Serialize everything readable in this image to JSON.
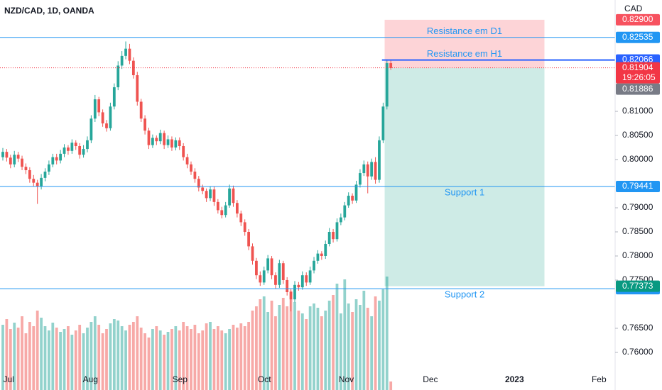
{
  "chart_data": {
    "type": "candlestick",
    "title": "NZD/CAD, 1D, OANDA",
    "currency": "CAD",
    "ylim": [
      0.7522,
      0.8331
    ],
    "xlim": [
      -0.74,
      159.4
    ],
    "yticks": [
      {
        "value": 0.81,
        "label": "0.81000"
      },
      {
        "value": 0.805,
        "label": "0.80500"
      },
      {
        "value": 0.8,
        "label": "0.80000"
      },
      {
        "value": 0.79,
        "label": "0.79000"
      },
      {
        "value": 0.785,
        "label": "0.78500"
      },
      {
        "value": 0.78,
        "label": "0.78000"
      },
      {
        "value": 0.775,
        "label": "0.77500"
      },
      {
        "value": 0.765,
        "label": "0.76500"
      },
      {
        "value": 0.76,
        "label": "0.76000"
      }
    ],
    "xticks": [
      {
        "value": 1.5,
        "label": "Jul"
      },
      {
        "value": 22.8,
        "label": "Aug"
      },
      {
        "value": 46.1,
        "label": "Sep"
      },
      {
        "value": 68.1,
        "label": "Oct"
      },
      {
        "value": 89.4,
        "label": "Nov"
      },
      {
        "value": 111.3,
        "label": "Dec"
      },
      {
        "value": 133.2,
        "label": "2023"
      },
      {
        "value": 155.2,
        "label": "Feb"
      }
    ],
    "up_color": "#26a69a",
    "down_color": "#ef5350",
    "candles": [
      [
        0.8005,
        0.8024,
        0.7998,
        0.8016
      ],
      [
        0.8016,
        0.8022,
        0.7996,
        0.8004
      ],
      [
        0.8004,
        0.801,
        0.7982,
        0.799
      ],
      [
        0.799,
        0.8018,
        0.7984,
        0.801
      ],
      [
        0.801,
        0.8016,
        0.7995,
        0.8002
      ],
      [
        0.8002,
        0.8008,
        0.7978,
        0.7985
      ],
      [
        0.7985,
        0.7992,
        0.797,
        0.7978
      ],
      [
        0.7978,
        0.7984,
        0.7952,
        0.796
      ],
      [
        0.796,
        0.7968,
        0.7945,
        0.7952
      ],
      [
        0.7952,
        0.7958,
        0.7908,
        0.7945
      ],
      [
        0.7945,
        0.797,
        0.7938,
        0.7962
      ],
      [
        0.7962,
        0.7982,
        0.7955,
        0.7975
      ],
      [
        0.7975,
        0.7998,
        0.7968,
        0.799
      ],
      [
        0.799,
        0.8012,
        0.7984,
        0.8005
      ],
      [
        0.8005,
        0.8012,
        0.799,
        0.7998
      ],
      [
        0.7998,
        0.802,
        0.7992,
        0.8012
      ],
      [
        0.8012,
        0.8032,
        0.8005,
        0.8025
      ],
      [
        0.8025,
        0.803,
        0.801,
        0.8018
      ],
      [
        0.8018,
        0.8042,
        0.8012,
        0.8035
      ],
      [
        0.8035,
        0.804,
        0.802,
        0.8028
      ],
      [
        0.8028,
        0.8034,
        0.8002,
        0.801
      ],
      [
        0.801,
        0.803,
        0.8004,
        0.8022
      ],
      [
        0.8022,
        0.8048,
        0.8015,
        0.804
      ],
      [
        0.804,
        0.8092,
        0.8034,
        0.8085
      ],
      [
        0.8085,
        0.8134,
        0.8078,
        0.8125
      ],
      [
        0.8125,
        0.813,
        0.809,
        0.8098
      ],
      [
        0.8098,
        0.8104,
        0.8068,
        0.8075
      ],
      [
        0.8075,
        0.8082,
        0.8058,
        0.8065
      ],
      [
        0.8065,
        0.8118,
        0.806,
        0.811
      ],
      [
        0.811,
        0.8158,
        0.8104,
        0.815
      ],
      [
        0.815,
        0.8204,
        0.8144,
        0.8195
      ],
      [
        0.8195,
        0.8225,
        0.8188,
        0.8215
      ],
      [
        0.8215,
        0.8245,
        0.8208,
        0.823
      ],
      [
        0.823,
        0.824,
        0.8198,
        0.8205
      ],
      [
        0.8205,
        0.8212,
        0.8168,
        0.8175
      ],
      [
        0.8175,
        0.8182,
        0.8112,
        0.812
      ],
      [
        0.812,
        0.8126,
        0.8078,
        0.8085
      ],
      [
        0.8085,
        0.8092,
        0.8052,
        0.806
      ],
      [
        0.806,
        0.8066,
        0.8022,
        0.803
      ],
      [
        0.803,
        0.8052,
        0.8024,
        0.8045
      ],
      [
        0.8045,
        0.805,
        0.803,
        0.8038
      ],
      [
        0.8038,
        0.8062,
        0.8032,
        0.8055
      ],
      [
        0.8055,
        0.806,
        0.8022,
        0.803
      ],
      [
        0.803,
        0.805,
        0.8024,
        0.8042
      ],
      [
        0.8042,
        0.8048,
        0.8018,
        0.8025
      ],
      [
        0.8025,
        0.8046,
        0.8019,
        0.804
      ],
      [
        0.804,
        0.8046,
        0.802,
        0.8028
      ],
      [
        0.8028,
        0.8034,
        0.7998,
        0.8005
      ],
      [
        0.8005,
        0.8012,
        0.7982,
        0.799
      ],
      [
        0.799,
        0.7996,
        0.7968,
        0.7975
      ],
      [
        0.7975,
        0.7982,
        0.7952,
        0.796
      ],
      [
        0.796,
        0.7966,
        0.7934,
        0.7942
      ],
      [
        0.7942,
        0.7948,
        0.7928,
        0.7935
      ],
      [
        0.7935,
        0.794,
        0.7912,
        0.792
      ],
      [
        0.792,
        0.7945,
        0.7914,
        0.7938
      ],
      [
        0.7938,
        0.7944,
        0.7904,
        0.7912
      ],
      [
        0.7912,
        0.7918,
        0.7888,
        0.7895
      ],
      [
        0.7895,
        0.7902,
        0.7878,
        0.7885
      ],
      [
        0.7885,
        0.7912,
        0.788,
        0.7905
      ],
      [
        0.7905,
        0.7948,
        0.79,
        0.794
      ],
      [
        0.794,
        0.7946,
        0.7902,
        0.791
      ],
      [
        0.791,
        0.7916,
        0.788,
        0.7888
      ],
      [
        0.7888,
        0.7894,
        0.7862,
        0.787
      ],
      [
        0.787,
        0.7876,
        0.7842,
        0.785
      ],
      [
        0.785,
        0.7856,
        0.7812,
        0.782
      ],
      [
        0.782,
        0.7826,
        0.7782,
        0.779
      ],
      [
        0.779,
        0.7796,
        0.7752,
        0.776
      ],
      [
        0.776,
        0.7768,
        0.7738,
        0.7745
      ],
      [
        0.7745,
        0.7778,
        0.774,
        0.777
      ],
      [
        0.777,
        0.7802,
        0.7764,
        0.7795
      ],
      [
        0.7795,
        0.78,
        0.7752,
        0.776
      ],
      [
        0.776,
        0.7766,
        0.7732,
        0.774
      ],
      [
        0.774,
        0.7792,
        0.7734,
        0.7785
      ],
      [
        0.7785,
        0.779,
        0.7742,
        0.775
      ],
      [
        0.775,
        0.7756,
        0.7718,
        0.7725
      ],
      [
        0.7725,
        0.7732,
        0.7685,
        0.771
      ],
      [
        0.771,
        0.7748,
        0.7704,
        0.774
      ],
      [
        0.774,
        0.7746,
        0.7728,
        0.7735
      ],
      [
        0.7735,
        0.7768,
        0.773,
        0.776
      ],
      [
        0.776,
        0.7766,
        0.7738,
        0.7745
      ],
      [
        0.7745,
        0.7778,
        0.774,
        0.777
      ],
      [
        0.777,
        0.7798,
        0.7764,
        0.779
      ],
      [
        0.779,
        0.7812,
        0.7784,
        0.7805
      ],
      [
        0.7805,
        0.781,
        0.7792,
        0.78
      ],
      [
        0.78,
        0.7832,
        0.7794,
        0.7825
      ],
      [
        0.7825,
        0.7858,
        0.782,
        0.785
      ],
      [
        0.785,
        0.7856,
        0.7828,
        0.7835
      ],
      [
        0.7835,
        0.7878,
        0.783,
        0.787
      ],
      [
        0.787,
        0.7888,
        0.7864,
        0.788
      ],
      [
        0.788,
        0.7912,
        0.7874,
        0.7905
      ],
      [
        0.7905,
        0.7932,
        0.79,
        0.7925
      ],
      [
        0.7925,
        0.793,
        0.7908,
        0.7915
      ],
      [
        0.7915,
        0.7956,
        0.791,
        0.7948
      ],
      [
        0.7948,
        0.798,
        0.7942,
        0.7972
      ],
      [
        0.7972,
        0.7998,
        0.7966,
        0.799
      ],
      [
        0.799,
        0.7996,
        0.793,
        0.7965
      ],
      [
        0.7965,
        0.8002,
        0.7958,
        0.7995
      ],
      [
        0.7995,
        0.8005,
        0.795,
        0.7958
      ],
      [
        0.7958,
        0.8048,
        0.7952,
        0.804
      ],
      [
        0.804,
        0.8118,
        0.8034,
        0.811
      ],
      [
        0.811,
        0.8208,
        0.8104,
        0.82
      ],
      [
        0.82,
        0.8206,
        0.8186,
        0.819
      ]
    ],
    "volume": [
      92,
      100,
      86,
      95,
      88,
      104,
      80,
      96,
      90,
      112,
      102,
      90,
      84,
      95,
      88,
      82,
      86,
      90,
      78,
      84,
      92,
      80,
      88,
      96,
      104,
      92,
      80,
      86,
      94,
      100,
      98,
      90,
      84,
      92,
      96,
      104,
      88,
      80,
      74,
      86,
      90,
      84,
      78,
      82,
      86,
      90,
      84,
      96,
      90,
      86,
      92,
      80,
      84,
      94,
      96,
      86,
      90,
      84,
      80,
      86,
      92,
      88,
      94,
      90,
      96,
      112,
      118,
      128,
      132,
      110,
      126,
      104,
      120,
      130,
      118,
      140,
      124,
      112,
      108,
      100,
      118,
      122,
      116,
      104,
      112,
      126,
      134,
      150,
      108,
      156,
      122,
      110,
      128,
      120,
      140,
      116,
      104,
      132,
      126,
      142,
      160,
      12
    ],
    "level_color": "#2196f3",
    "levels": [
      {
        "name": "Resistance em D1",
        "value": 0.82535
      },
      {
        "name": "Resistance em H1",
        "value": 0.82066,
        "from": 98.7,
        "color": "#2962ff"
      },
      {
        "name": "Support 1",
        "value": 0.79441
      },
      {
        "name": "Support 2",
        "value": 0.77321
      }
    ],
    "position": {
      "stop": {
        "value": 0.829,
        "label": "0.82900"
      },
      "entry": 0.819,
      "target": 0.77373,
      "from": 99.4,
      "to": 141,
      "stop_color": "#f7525f",
      "target_color": "#089981"
    },
    "price": {
      "value": 0.81904,
      "countdown": "19:26:05",
      "color": "#f23645"
    },
    "bid": {
      "value": 0.81886,
      "color": "#787b86"
    }
  }
}
